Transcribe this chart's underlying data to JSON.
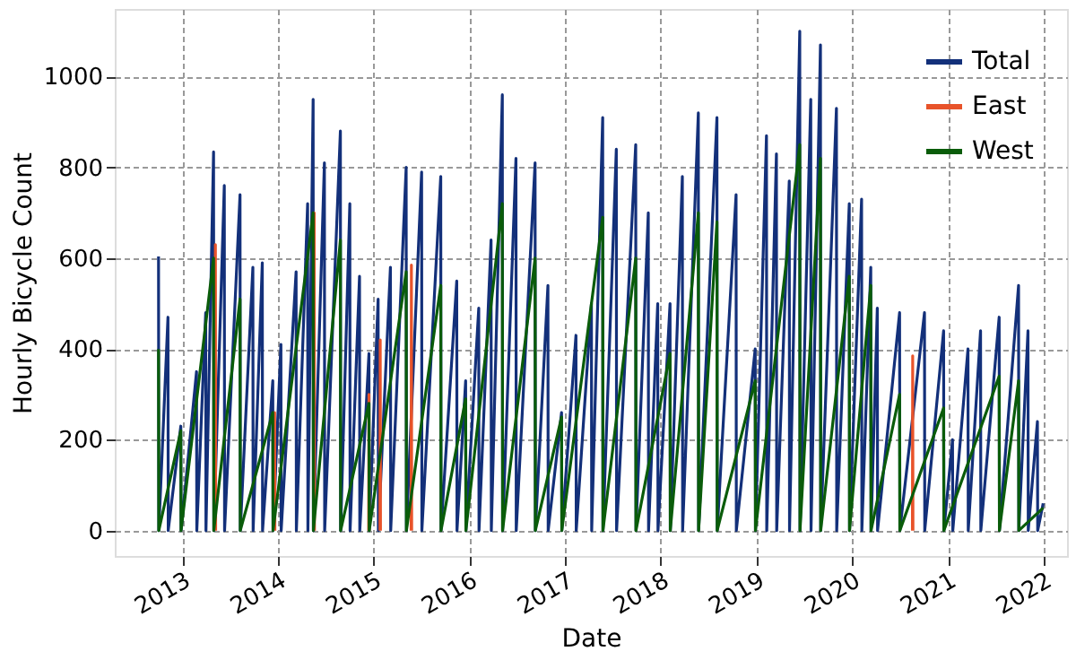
{
  "chart_data": {
    "type": "line",
    "xlabel": "Date",
    "ylabel": "Hourly Bicycle Count",
    "xlim": [
      "2012-04-19",
      "2022-04-01"
    ],
    "xticks": [
      "2013",
      "2014",
      "2015",
      "2016",
      "2017",
      "2018",
      "2019",
      "2020",
      "2021",
      "2022"
    ],
    "ylim": [
      -56,
      1149
    ],
    "yticks": [
      0,
      200,
      400,
      600,
      800,
      1000
    ],
    "grid": true,
    "legend": "top right",
    "marker": "none",
    "line_style": "solid",
    "series": [
      {
        "name": "Total",
        "color": "#13307a",
        "x": [
          "2012-10-03",
          "2012-10-04",
          "2012-11-08",
          "2012-11-09",
          "2012-12-27",
          "2012-12-28",
          "2013-02-25",
          "2013-02-26",
          "2013-04-01",
          "2013-04-02",
          "2013-05-01",
          "2013-05-02",
          "2013-06-11",
          "2013-06-12",
          "2013-08-10",
          "2013-08-11",
          "2013-09-28",
          "2013-09-29",
          "2013-11-03",
          "2013-11-04",
          "2013-12-13",
          "2013-12-14",
          "2014-01-13",
          "2014-01-14",
          "2014-03-12",
          "2014-03-13",
          "2014-04-25",
          "2014-04-26",
          "2014-05-16",
          "2014-05-17",
          "2014-06-28",
          "2014-06-29",
          "2014-08-28",
          "2014-08-29",
          "2014-10-03",
          "2014-10-04",
          "2014-11-09",
          "2014-11-10",
          "2014-12-15",
          "2014-12-16",
          "2015-01-19",
          "2015-01-20",
          "2015-03-07",
          "2015-03-08",
          "2015-05-06",
          "2015-05-07",
          "2015-07-04",
          "2015-07-05",
          "2015-09-15",
          "2015-09-16",
          "2015-11-15",
          "2015-11-16",
          "2015-12-19",
          "2015-12-20",
          "2016-02-07",
          "2016-02-08",
          "2016-03-25",
          "2016-03-26",
          "2016-05-07",
          "2016-05-08",
          "2016-06-28",
          "2016-06-29",
          "2016-09-09",
          "2016-09-10",
          "2016-10-28",
          "2016-10-29",
          "2016-12-19",
          "2016-12-20",
          "2017-02-12",
          "2017-02-13",
          "2017-04-12",
          "2017-04-13",
          "2017-05-25",
          "2017-05-26",
          "2017-07-16",
          "2017-07-17",
          "2017-09-28",
          "2017-09-29",
          "2017-11-15",
          "2017-11-16",
          "2017-12-21",
          "2017-12-22",
          "2018-02-06",
          "2018-02-07",
          "2018-03-25",
          "2018-03-26",
          "2018-05-25",
          "2018-05-26",
          "2018-08-04",
          "2018-08-05",
          "2018-10-16",
          "2018-10-17",
          "2018-12-28",
          "2018-12-29",
          "2019-02-09",
          "2019-02-10",
          "2019-03-19",
          "2019-03-20",
          "2019-05-07",
          "2019-05-08",
          "2019-06-16",
          "2019-06-17",
          "2019-07-28",
          "2019-07-29",
          "2019-09-03",
          "2019-09-04",
          "2019-11-03",
          "2019-11-04",
          "2019-12-22",
          "2019-12-23",
          "2020-02-07",
          "2020-02-08",
          "2020-03-13",
          "2020-03-14",
          "2020-04-07",
          "2020-04-08",
          "2020-07-01",
          "2020-07-02",
          "2020-10-04",
          "2020-10-05",
          "2020-12-16",
          "2020-12-17",
          "2021-01-19",
          "2021-01-20",
          "2021-03-19",
          "2021-03-20",
          "2021-05-06",
          "2021-05-07",
          "2021-07-16",
          "2021-07-17",
          "2021-09-28",
          "2021-09-29",
          "2021-11-03",
          "2021-11-04",
          "2021-12-09",
          "2021-12-10",
          "2021-12-31"
        ],
        "values": [
          604,
          0,
          470,
          0,
          230,
          0,
          350,
          0,
          480,
          0,
          834,
          0,
          760,
          0,
          740,
          0,
          580,
          0,
          590,
          0,
          330,
          0,
          410,
          0,
          570,
          0,
          720,
          0,
          950,
          0,
          810,
          0,
          880,
          0,
          720,
          0,
          560,
          0,
          390,
          0,
          510,
          0,
          580,
          0,
          800,
          0,
          790,
          0,
          780,
          0,
          550,
          0,
          330,
          0,
          490,
          0,
          640,
          0,
          960,
          0,
          820,
          0,
          810,
          0,
          540,
          0,
          260,
          0,
          430,
          0,
          500,
          0,
          910,
          0,
          840,
          0,
          850,
          0,
          700,
          0,
          500,
          0,
          500,
          0,
          780,
          0,
          920,
          0,
          910,
          0,
          740,
          0,
          400,
          0,
          870,
          0,
          830,
          0,
          770,
          0,
          1100,
          0,
          950,
          0,
          1070,
          0,
          930,
          0,
          720,
          0,
          730,
          0,
          580,
          0,
          490,
          0,
          480,
          0,
          480,
          0,
          440,
          0,
          200,
          0,
          400,
          0,
          440,
          0,
          470,
          0,
          540,
          0,
          440,
          0,
          240,
          0,
          60
        ]
      },
      {
        "name": "East",
        "color": "#e8532a",
        "x": [
          "2013-05-07",
          "2013-05-08",
          "2013-05-09",
          "2013-05-10",
          "2013-12-19",
          "2013-12-20",
          "2013-12-21",
          "2013-12-22",
          "2014-05-19",
          "2014-05-20",
          "2014-05-21",
          "2014-05-22",
          "2014-12-14",
          "2014-12-15",
          "2014-12-16",
          "2014-12-17",
          "2015-01-26",
          "2015-01-27",
          "2015-01-28",
          "2015-01-29",
          "2015-05-25",
          "2015-05-26",
          "2015-05-27",
          "2015-05-28",
          "2020-08-19",
          "2020-08-20",
          "2020-08-21"
        ],
        "values": [
          0,
          630,
          0,
          null,
          0,
          260,
          0,
          null,
          0,
          700,
          0,
          null,
          0,
          300,
          0,
          null,
          0,
          420,
          0,
          null,
          0,
          585,
          0,
          null,
          0,
          385,
          0
        ]
      },
      {
        "name": "West",
        "color": "#0a5c0a",
        "x": [
          "2012-10-03",
          "2012-10-04",
          "2012-12-27",
          "2012-12-28",
          "2013-05-01",
          "2013-05-02",
          "2013-08-10",
          "2013-08-11",
          "2013-12-13",
          "2013-12-14",
          "2014-05-16",
          "2014-05-17",
          "2014-08-28",
          "2014-08-29",
          "2014-12-15",
          "2014-12-16",
          "2015-05-06",
          "2015-05-07",
          "2015-09-15",
          "2015-09-16",
          "2015-12-19",
          "2015-12-20",
          "2016-05-07",
          "2016-05-08",
          "2016-09-09",
          "2016-09-10",
          "2016-12-19",
          "2016-12-20",
          "2017-05-25",
          "2017-05-26",
          "2017-09-28",
          "2017-09-29",
          "2018-02-06",
          "2018-02-07",
          "2018-05-25",
          "2018-05-26",
          "2018-08-04",
          "2018-08-05",
          "2018-12-28",
          "2018-12-29",
          "2019-06-16",
          "2019-06-17",
          "2019-09-03",
          "2019-09-04",
          "2019-12-22",
          "2019-12-23",
          "2020-03-13",
          "2020-03-14",
          "2020-07-01",
          "2020-07-02",
          "2020-12-16",
          "2020-12-17",
          "2021-07-16",
          "2021-07-17",
          "2021-09-28",
          "2021-09-29",
          "2021-12-31"
        ],
        "values": [
          400,
          0,
          220,
          0,
          600,
          0,
          510,
          0,
          260,
          0,
          700,
          0,
          640,
          0,
          280,
          0,
          570,
          0,
          540,
          0,
          290,
          0,
          720,
          0,
          600,
          0,
          250,
          0,
          690,
          0,
          600,
          0,
          390,
          0,
          700,
          0,
          680,
          0,
          330,
          0,
          850,
          0,
          820,
          0,
          560,
          0,
          540,
          0,
          300,
          0,
          270,
          0,
          340,
          0,
          330,
          0,
          50
        ]
      }
    ]
  }
}
